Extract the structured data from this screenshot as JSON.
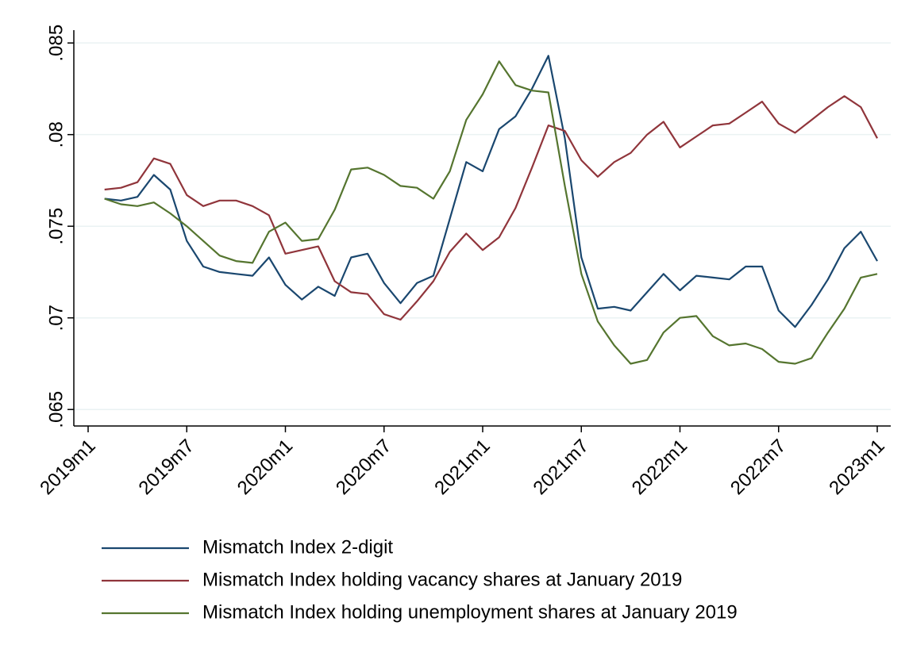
{
  "chart_data": {
    "type": "line",
    "categories": [
      "2019m1",
      null,
      null,
      null,
      null,
      null,
      "2019m7",
      null,
      null,
      null,
      null,
      null,
      "2020m1",
      null,
      null,
      null,
      null,
      null,
      "2020m7",
      null,
      null,
      null,
      null,
      null,
      "2021m1",
      null,
      null,
      null,
      null,
      null,
      "2021m7",
      null,
      null,
      null,
      null,
      null,
      "2022m1",
      null,
      null,
      null,
      null,
      null,
      "2022m7",
      null,
      null,
      null,
      null,
      null,
      "2023m1"
    ],
    "series": [
      {
        "name": "Mismatch Index 2-digit",
        "color": "#1a476f",
        "values": [
          null,
          0.0765,
          0.0764,
          0.0766,
          0.0778,
          0.077,
          0.0742,
          0.0728,
          0.0725,
          0.0724,
          0.0723,
          0.0733,
          0.0718,
          0.071,
          0.0717,
          0.0712,
          0.0733,
          0.0735,
          0.0719,
          0.0708,
          0.0719,
          0.0723,
          0.0754,
          0.0785,
          0.078,
          0.0803,
          0.081,
          0.0825,
          0.0843,
          0.0798,
          0.0733,
          0.0705,
          0.0706,
          0.0704,
          0.0714,
          0.0724,
          0.0715,
          0.0723,
          0.0722,
          0.0721,
          0.0728,
          0.0728,
          0.0704,
          0.0695,
          0.0707,
          0.0721,
          0.0738,
          0.0747,
          0.0731
        ]
      },
      {
        "name": "Mismatch Index holding vacancy shares at January 2019",
        "color": "#90353b",
        "values": [
          null,
          0.077,
          0.0771,
          0.0774,
          0.0787,
          0.0784,
          0.0767,
          0.0761,
          0.0764,
          0.0764,
          0.0761,
          0.0756,
          0.0735,
          0.0737,
          0.0739,
          0.072,
          0.0714,
          0.0713,
          0.0702,
          0.0699,
          0.0709,
          0.072,
          0.0736,
          0.0746,
          0.0737,
          0.0744,
          0.076,
          0.0782,
          0.0805,
          0.0802,
          0.0786,
          0.0777,
          0.0785,
          0.079,
          0.08,
          0.0807,
          0.0793,
          0.0799,
          0.0805,
          0.0806,
          0.0812,
          0.0818,
          0.0806,
          0.0801,
          0.0808,
          0.0815,
          0.0821,
          0.0815,
          0.0798
        ]
      },
      {
        "name": "Mismatch Index holding unemployment shares at January 2019",
        "color": "#55752f",
        "values": [
          null,
          0.0765,
          0.0762,
          0.0761,
          0.0763,
          0.0757,
          0.075,
          0.0742,
          0.0734,
          0.0731,
          0.073,
          0.0747,
          0.0752,
          0.0742,
          0.0743,
          0.0759,
          0.0781,
          0.0782,
          0.0778,
          0.0772,
          0.0771,
          0.0765,
          0.078,
          0.0808,
          0.0822,
          0.084,
          0.0827,
          0.0824,
          0.0823,
          0.0772,
          0.0724,
          0.0698,
          0.0685,
          0.0675,
          0.0677,
          0.0692,
          0.07,
          0.0701,
          0.069,
          0.0685,
          0.0686,
          0.0683,
          0.0676,
          0.0675,
          0.0678,
          0.0692,
          0.0705,
          0.0722,
          0.0724
        ]
      }
    ],
    "ylim": [
      0.0641,
      0.0857
    ],
    "yticks": [
      {
        "value": 0.065,
        "label": ".065"
      },
      {
        "value": 0.07,
        "label": ".07"
      },
      {
        "value": 0.075,
        "label": ".075"
      },
      {
        "value": 0.08,
        "label": ".08"
      },
      {
        "value": 0.085,
        "label": ".085"
      }
    ],
    "grid": true,
    "legend": "bottom"
  }
}
